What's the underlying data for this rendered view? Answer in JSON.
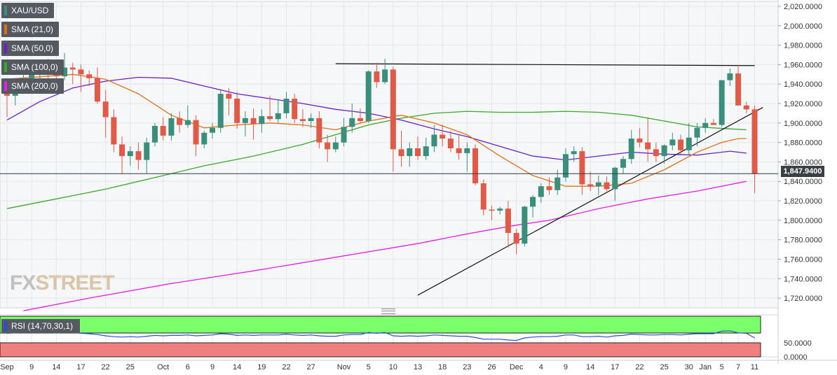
{
  "chart_data": {
    "type": "candlestick",
    "symbol": "XAU/USD",
    "legend": [
      {
        "label": "XAU/USD",
        "color": "#3a8f7c"
      },
      {
        "label": "SMA (21,0)",
        "color": "#e0701a"
      },
      {
        "label": "SMA (50,0)",
        "color": "#6a1fc7"
      },
      {
        "label": "SMA (100,0)",
        "color": "#3aa82a"
      },
      {
        "label": "SMA (200,0)",
        "color": "#e61fe6"
      }
    ],
    "colors": {
      "up": "#3a8f7c",
      "down": "#e05a48",
      "rsi_line": "#2d4bd3",
      "rsi_overbought": "#7bff6b",
      "rsi_oversold": "#f08080"
    },
    "y_axis": {
      "min": 1710,
      "max": 2025,
      "ticks": [
        "2,020.0000",
        "2,000.0000",
        "1,980.0000",
        "1,960.0000",
        "1,940.0000",
        "1,920.0000",
        "1,900.0000",
        "1,880.0000",
        "1,860.0000",
        "1,840.0000",
        "1,820.0000",
        "1,800.0000",
        "1,780.0000",
        "1,760.0000",
        "1,740.0000",
        "1,720.0000"
      ]
    },
    "current_price": {
      "value": 1847.94,
      "label": "1,847.9400"
    },
    "x_labels": [
      {
        "i": 0,
        "text": "Sep"
      },
      {
        "i": 3,
        "text": "9"
      },
      {
        "i": 6,
        "text": "14"
      },
      {
        "i": 9,
        "text": "17"
      },
      {
        "i": 12,
        "text": "22"
      },
      {
        "i": 15,
        "text": "25"
      },
      {
        "i": 19,
        "text": "Oct"
      },
      {
        "i": 22,
        "text": "6"
      },
      {
        "i": 25,
        "text": "9"
      },
      {
        "i": 28,
        "text": "14"
      },
      {
        "i": 31,
        "text": "19"
      },
      {
        "i": 34,
        "text": "22"
      },
      {
        "i": 37,
        "text": "27"
      },
      {
        "i": 41,
        "text": "Nov"
      },
      {
        "i": 44,
        "text": "5"
      },
      {
        "i": 47,
        "text": "10"
      },
      {
        "i": 50,
        "text": "13"
      },
      {
        "i": 53,
        "text": "18"
      },
      {
        "i": 56,
        "text": "23"
      },
      {
        "i": 59,
        "text": "26"
      },
      {
        "i": 62,
        "text": "Dec"
      },
      {
        "i": 65,
        "text": "4"
      },
      {
        "i": 68,
        "text": "9"
      },
      {
        "i": 71,
        "text": "14"
      },
      {
        "i": 74,
        "text": "17"
      },
      {
        "i": 77,
        "text": "22"
      },
      {
        "i": 80,
        "text": "25"
      },
      {
        "i": 83,
        "text": "30"
      },
      {
        "i": 85,
        "text": "Jan"
      },
      {
        "i": 87,
        "text": "5"
      },
      {
        "i": 89,
        "text": "7"
      },
      {
        "i": 91,
        "text": "11"
      }
    ],
    "candles": [
      [
        1932,
        1945,
        1906,
        1928
      ],
      [
        1928,
        1945,
        1918,
        1940
      ],
      [
        1940,
        1952,
        1932,
        1946
      ],
      [
        1946,
        1958,
        1940,
        1950
      ],
      [
        1950,
        1965,
        1944,
        1958
      ],
      [
        1958,
        1966,
        1946,
        1952
      ],
      [
        1952,
        1958,
        1940,
        1948
      ],
      [
        1948,
        1972,
        1944,
        1957
      ],
      [
        1957,
        1962,
        1940,
        1955
      ],
      [
        1955,
        1960,
        1932,
        1950
      ],
      [
        1950,
        1954,
        1938,
        1946
      ],
      [
        1946,
        1957,
        1920,
        1922
      ],
      [
        1922,
        1934,
        1885,
        1906
      ],
      [
        1906,
        1914,
        1870,
        1878
      ],
      [
        1878,
        1886,
        1848,
        1866
      ],
      [
        1866,
        1876,
        1856,
        1871
      ],
      [
        1871,
        1880,
        1852,
        1862
      ],
      [
        1862,
        1885,
        1848,
        1880
      ],
      [
        1880,
        1900,
        1876,
        1897
      ],
      [
        1897,
        1906,
        1882,
        1887
      ],
      [
        1887,
        1910,
        1882,
        1905
      ],
      [
        1905,
        1912,
        1890,
        1898
      ],
      [
        1898,
        1918,
        1895,
        1903
      ],
      [
        1903,
        1908,
        1866,
        1878
      ],
      [
        1878,
        1892,
        1874,
        1890
      ],
      [
        1890,
        1900,
        1884,
        1895
      ],
      [
        1895,
        1935,
        1890,
        1930
      ],
      [
        1930,
        1936,
        1908,
        1925
      ],
      [
        1925,
        1932,
        1894,
        1900
      ],
      [
        1900,
        1912,
        1886,
        1905
      ],
      [
        1905,
        1915,
        1883,
        1899
      ],
      [
        1899,
        1914,
        1890,
        1907
      ],
      [
        1907,
        1928,
        1902,
        1904
      ],
      [
        1904,
        1924,
        1900,
        1910
      ],
      [
        1910,
        1932,
        1905,
        1925
      ],
      [
        1925,
        1930,
        1900,
        1904
      ],
      [
        1904,
        1914,
        1896,
        1902
      ],
      [
        1902,
        1910,
        1895,
        1905
      ],
      [
        1905,
        1912,
        1874,
        1880
      ],
      [
        1880,
        1888,
        1860,
        1873
      ],
      [
        1873,
        1886,
        1870,
        1880
      ],
      [
        1880,
        1905,
        1876,
        1896
      ],
      [
        1896,
        1920,
        1890,
        1905
      ],
      [
        1905,
        1915,
        1900,
        1902
      ],
      [
        1902,
        1954,
        1900,
        1953
      ],
      [
        1953,
        1962,
        1936,
        1942
      ],
      [
        1942,
        1966,
        1940,
        1955
      ],
      [
        1955,
        1958,
        1850,
        1873
      ],
      [
        1873,
        1892,
        1855,
        1866
      ],
      [
        1866,
        1880,
        1855,
        1874
      ],
      [
        1874,
        1886,
        1862,
        1866
      ],
      [
        1866,
        1885,
        1862,
        1876
      ],
      [
        1876,
        1898,
        1870,
        1888
      ],
      [
        1888,
        1898,
        1876,
        1884
      ],
      [
        1884,
        1892,
        1870,
        1874
      ],
      [
        1874,
        1888,
        1862,
        1869
      ],
      [
        1869,
        1880,
        1850,
        1874
      ],
      [
        1874,
        1878,
        1836,
        1838
      ],
      [
        1838,
        1842,
        1805,
        1811
      ],
      [
        1811,
        1815,
        1800,
        1810
      ],
      [
        1810,
        1814,
        1806,
        1812
      ],
      [
        1812,
        1820,
        1772,
        1787
      ],
      [
        1787,
        1791,
        1765,
        1776
      ],
      [
        1776,
        1815,
        1773,
        1814
      ],
      [
        1814,
        1826,
        1803,
        1824
      ],
      [
        1824,
        1838,
        1818,
        1835
      ],
      [
        1835,
        1844,
        1826,
        1831
      ],
      [
        1831,
        1852,
        1826,
        1844
      ],
      [
        1844,
        1874,
        1840,
        1868
      ],
      [
        1868,
        1876,
        1860,
        1871
      ],
      [
        1871,
        1875,
        1826,
        1837
      ],
      [
        1837,
        1850,
        1830,
        1835
      ],
      [
        1835,
        1846,
        1826,
        1839
      ],
      [
        1839,
        1845,
        1830,
        1832
      ],
      [
        1832,
        1855,
        1820,
        1854
      ],
      [
        1854,
        1866,
        1848,
        1863
      ],
      [
        1863,
        1893,
        1858,
        1884
      ],
      [
        1884,
        1895,
        1875,
        1880
      ],
      [
        1880,
        1906,
        1860,
        1873
      ],
      [
        1873,
        1880,
        1860,
        1866
      ],
      [
        1866,
        1878,
        1858,
        1877
      ],
      [
        1877,
        1890,
        1872,
        1883
      ],
      [
        1883,
        1888,
        1868,
        1872
      ],
      [
        1872,
        1900,
        1868,
        1885
      ],
      [
        1885,
        1900,
        1876,
        1895
      ],
      [
        1895,
        1905,
        1890,
        1900
      ],
      [
        1900,
        1904,
        1898,
        1898
      ],
      [
        1898,
        1944,
        1896,
        1944
      ],
      [
        1944,
        1956,
        1938,
        1951
      ],
      [
        1951,
        1960,
        1920,
        1918
      ],
      [
        1918,
        1922,
        1910,
        1914
      ],
      [
        1914,
        1918,
        1828,
        1848
      ]
    ],
    "sma21": [
      [
        0,
        1945
      ],
      [
        8,
        1950
      ],
      [
        12,
        1945
      ],
      [
        16,
        1930
      ],
      [
        20,
        1908
      ],
      [
        24,
        1895
      ],
      [
        28,
        1898
      ],
      [
        32,
        1900
      ],
      [
        36,
        1898
      ],
      [
        40,
        1893
      ],
      [
        44,
        1902
      ],
      [
        48,
        1908
      ],
      [
        52,
        1900
      ],
      [
        56,
        1888
      ],
      [
        60,
        1866
      ],
      [
        64,
        1846
      ],
      [
        68,
        1835
      ],
      [
        72,
        1835
      ],
      [
        76,
        1838
      ],
      [
        80,
        1852
      ],
      [
        84,
        1870
      ],
      [
        87,
        1880
      ],
      [
        89,
        1884
      ],
      [
        90,
        1884
      ]
    ],
    "sma50": [
      [
        0,
        1903
      ],
      [
        4,
        1922
      ],
      [
        8,
        1936
      ],
      [
        12,
        1943
      ],
      [
        16,
        1947
      ],
      [
        20,
        1946
      ],
      [
        24,
        1938
      ],
      [
        28,
        1930
      ],
      [
        32,
        1925
      ],
      [
        36,
        1920
      ],
      [
        40,
        1914
      ],
      [
        44,
        1910
      ],
      [
        48,
        1903
      ],
      [
        52,
        1894
      ],
      [
        56,
        1886
      ],
      [
        60,
        1876
      ],
      [
        64,
        1866
      ],
      [
        68,
        1862
      ],
      [
        72,
        1866
      ],
      [
        76,
        1870
      ],
      [
        80,
        1868
      ],
      [
        84,
        1867
      ],
      [
        88,
        1871
      ],
      [
        90,
        1869
      ]
    ],
    "sma100": [
      [
        0,
        1812
      ],
      [
        6,
        1822
      ],
      [
        12,
        1832
      ],
      [
        18,
        1844
      ],
      [
        24,
        1856
      ],
      [
        30,
        1866
      ],
      [
        36,
        1878
      ],
      [
        40,
        1888
      ],
      [
        44,
        1898
      ],
      [
        48,
        1905
      ],
      [
        52,
        1910
      ],
      [
        56,
        1912
      ],
      [
        60,
        1911
      ],
      [
        64,
        1911
      ],
      [
        68,
        1912
      ],
      [
        72,
        1911
      ],
      [
        76,
        1908
      ],
      [
        80,
        1902
      ],
      [
        84,
        1896
      ],
      [
        88,
        1894
      ],
      [
        90,
        1893
      ]
    ],
    "sma200": [
      [
        2,
        1707
      ],
      [
        10,
        1720
      ],
      [
        20,
        1735
      ],
      [
        30,
        1748
      ],
      [
        40,
        1762
      ],
      [
        50,
        1776
      ],
      [
        56,
        1786
      ],
      [
        62,
        1795
      ],
      [
        66,
        1800
      ],
      [
        72,
        1812
      ],
      [
        78,
        1822
      ],
      [
        84,
        1830
      ],
      [
        90,
        1840
      ]
    ],
    "trendlines": [
      [
        [
          40,
          1961
        ],
        [
          91,
          1959
        ]
      ],
      [
        [
          50,
          1723
        ],
        [
          92,
          1916
        ]
      ]
    ],
    "rsi": {
      "label": "RSI (14,70,30,1)",
      "overbought": 70,
      "oversold": 30,
      "ticks": [
        "50.0000",
        "0.0000"
      ],
      "values": [
        56,
        57,
        58,
        58,
        59,
        58,
        57,
        58,
        58,
        56,
        55,
        53,
        50,
        48,
        47,
        48,
        47,
        49,
        51,
        50,
        51,
        51,
        52,
        50,
        51,
        52,
        55,
        54,
        51,
        52,
        51,
        52,
        52,
        52,
        54,
        52,
        51,
        52,
        50,
        49,
        49,
        52,
        53,
        53,
        58,
        56,
        58,
        50,
        49,
        50,
        49,
        50,
        52,
        51,
        50,
        49,
        49,
        46,
        42,
        42,
        42,
        40,
        39,
        45,
        47,
        48,
        48,
        49,
        52,
        52,
        48,
        48,
        49,
        47,
        50,
        51,
        54,
        53,
        52,
        52,
        53,
        53,
        52,
        54,
        55,
        55,
        55,
        61,
        62,
        57,
        56,
        45
      ]
    }
  },
  "watermark": {
    "fx": "FX",
    "street": "STREET"
  }
}
